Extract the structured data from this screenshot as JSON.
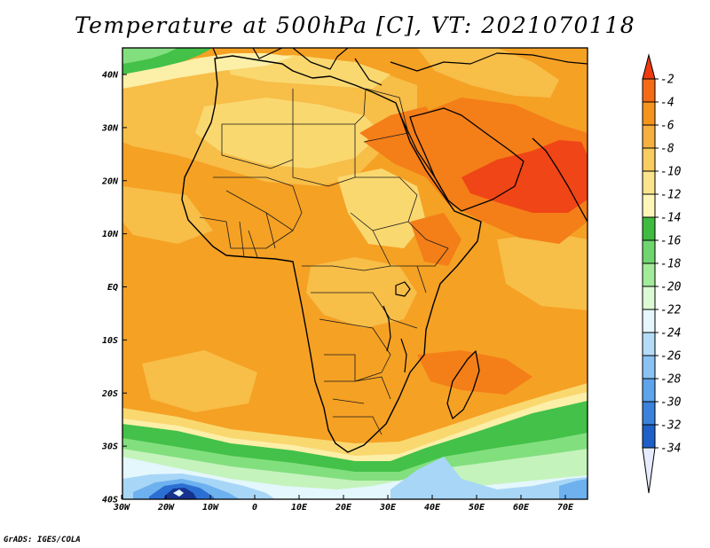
{
  "title": "Temperature at 500hPa [C], VT: 2021070118",
  "credit": "GrADS: IGES/COLA",
  "axes": {
    "longitude_ticks": [
      "30W",
      "20W",
      "10W",
      "0",
      "10E",
      "20E",
      "30E",
      "40E",
      "50E",
      "60E",
      "70E"
    ],
    "latitude_ticks": [
      "40N",
      "30N",
      "20N",
      "10N",
      "EQ",
      "10S",
      "20S",
      "30S",
      "40S"
    ]
  },
  "colorbar": {
    "labels": [
      "-2",
      "-4",
      "-6",
      "-8",
      "-10",
      "-12",
      "-14",
      "-16",
      "-18",
      "-20",
      "-22",
      "-24",
      "-26",
      "-28",
      "-30",
      "-32",
      "-34"
    ],
    "colors": [
      "#f03a10",
      "#f56a14",
      "#f5941c",
      "#f5b040",
      "#f8cc60",
      "#fae48c",
      "#fdf6b8",
      "#3fbb3f",
      "#6fd66f",
      "#a2eb9a",
      "#dcfad4",
      "#e6f6fd",
      "#b4dcf9",
      "#8ac2f4",
      "#5ea4ec",
      "#3a82dc",
      "#1f60c8",
      "#0e3a9a"
    ],
    "overflow_low": "#e6ecfd"
  },
  "palette": {
    "red": "#f04516",
    "orange_dark": "#f47e18",
    "orange": "#f5a124",
    "orange_light": "#f7be48",
    "yellow": "#fad870",
    "pale_yellow": "#fcefa8",
    "green": "#43c148",
    "green_light": "#82df7e",
    "mint": "#c5f3bc",
    "ice": "#e3f7fd",
    "blue_light": "#a8d6f7",
    "blue": "#6db1ef",
    "blue_dark": "#2b6fd3",
    "navy": "#15338e",
    "coast": "#000000",
    "border": "#1a1a1a"
  }
}
